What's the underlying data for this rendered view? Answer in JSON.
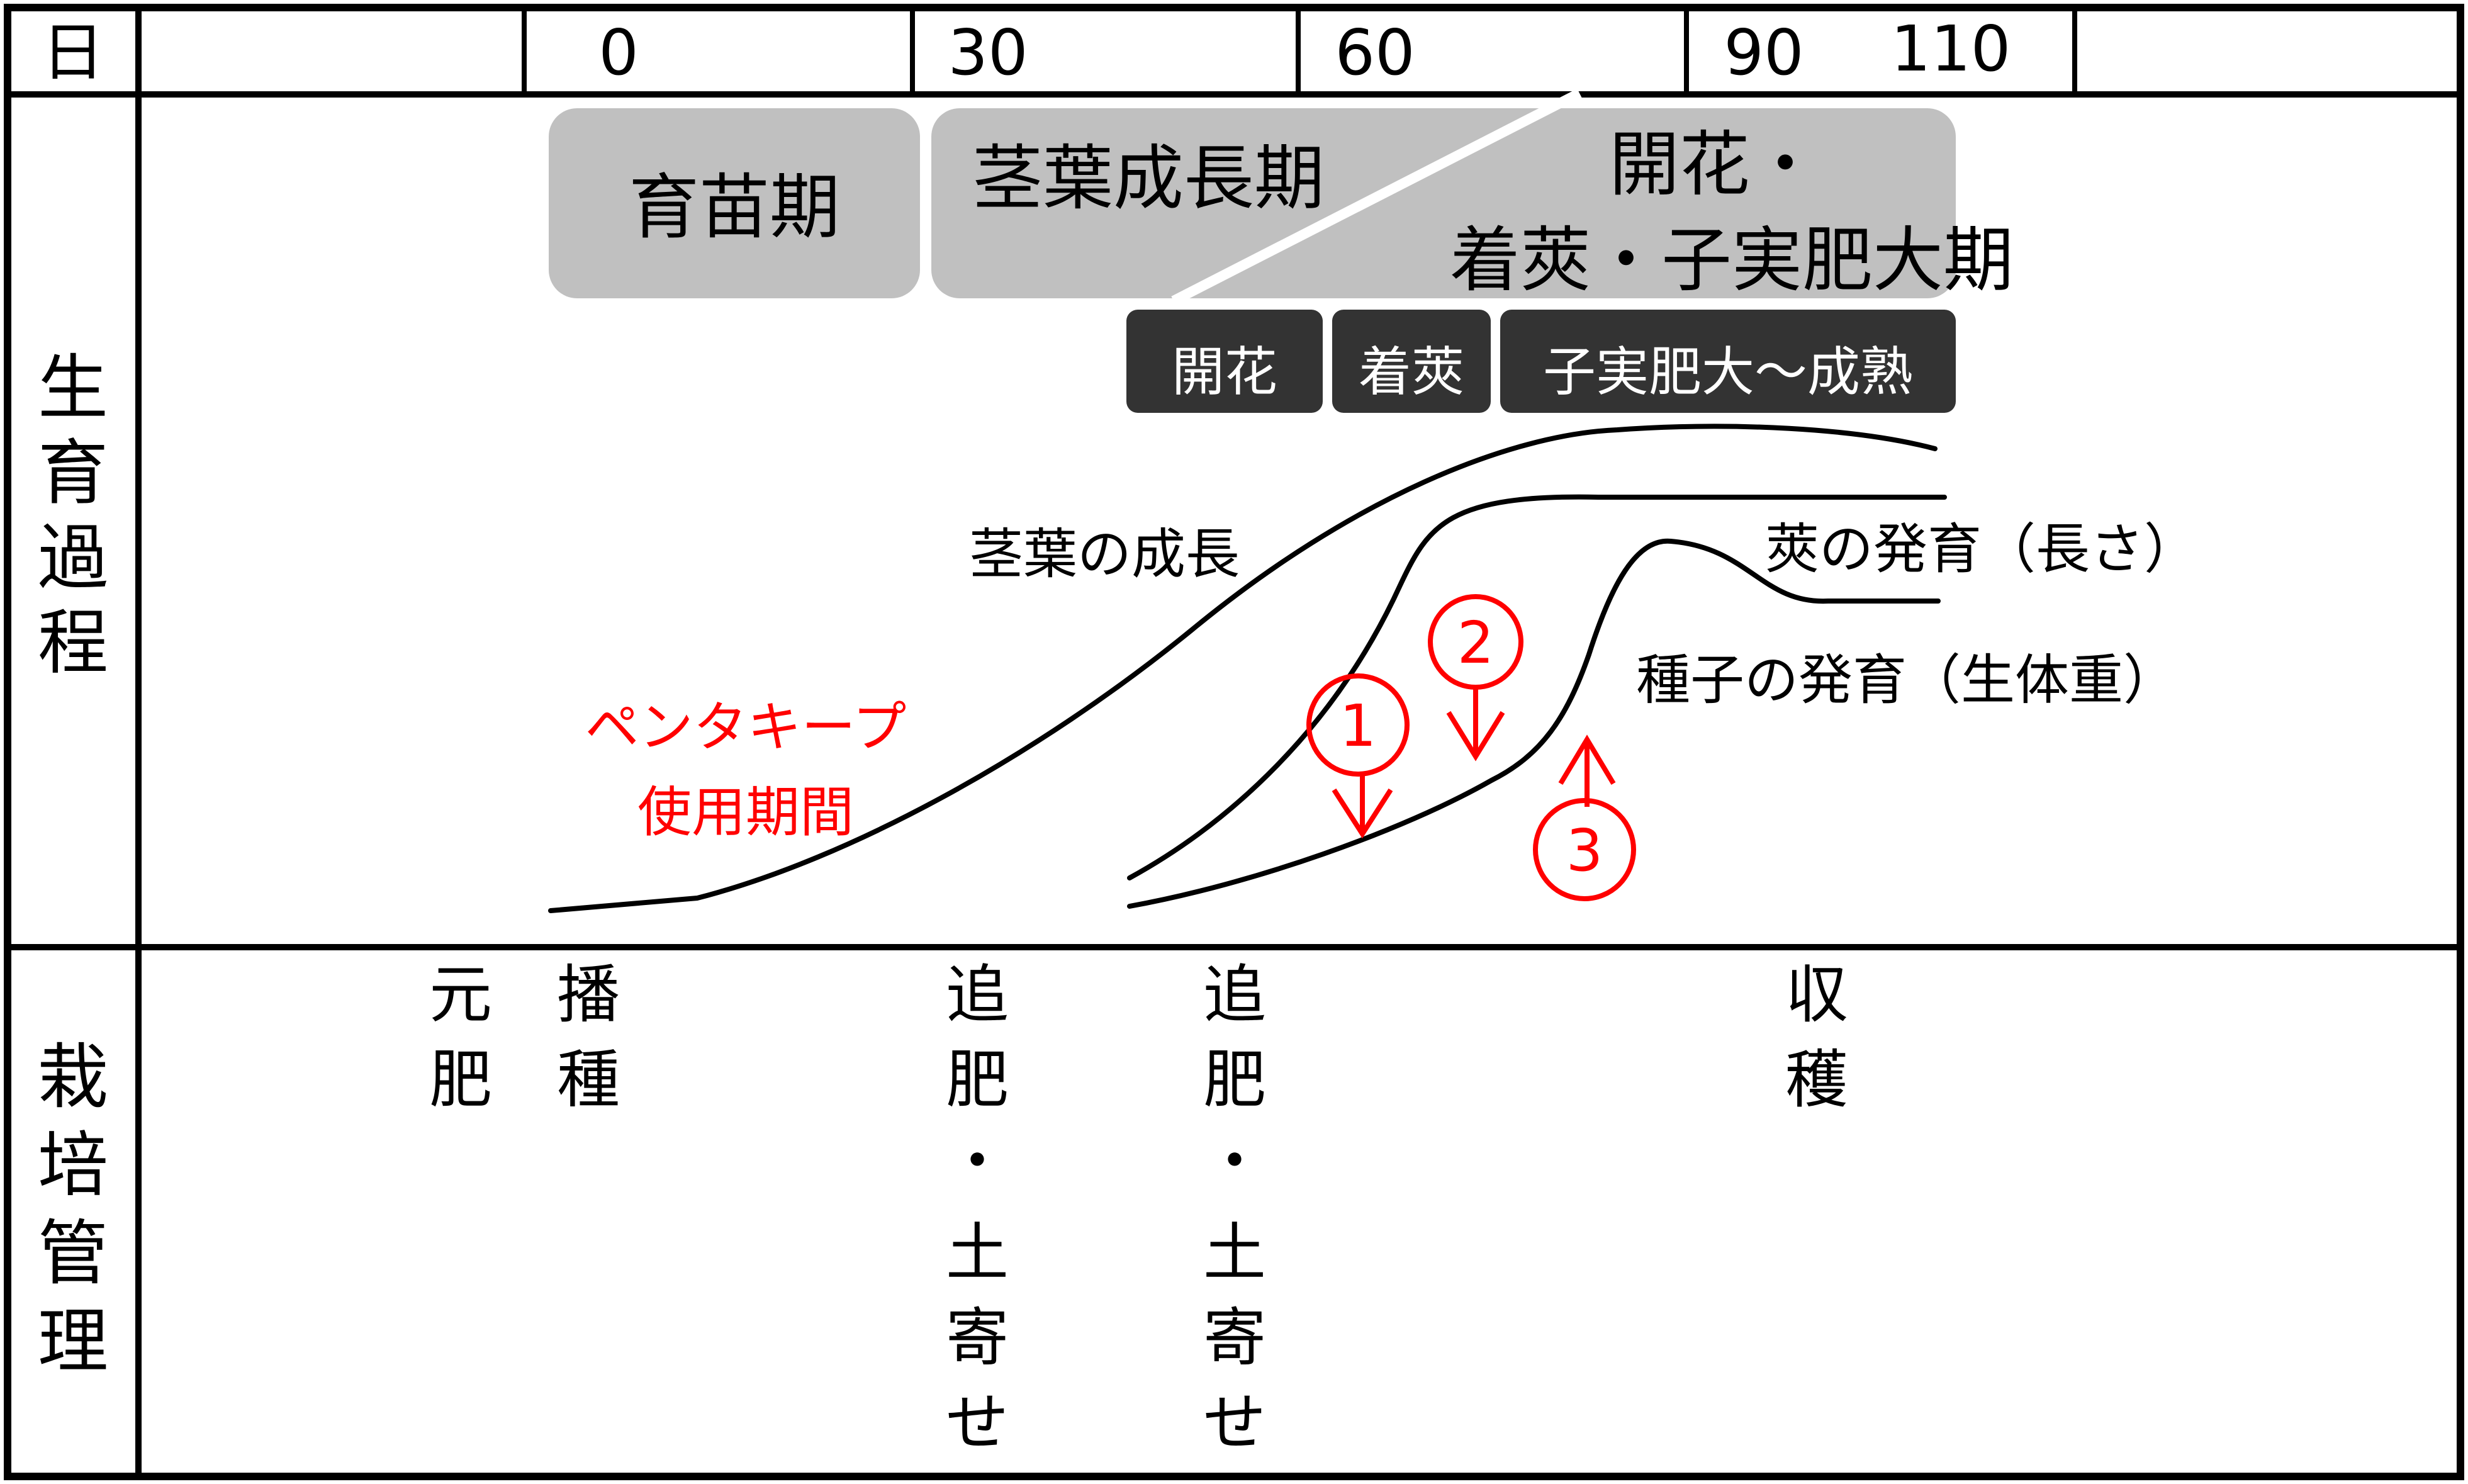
{
  "header": {
    "row_label": "日",
    "day_ticks": [
      "0",
      "30",
      "60",
      "90",
      "110"
    ]
  },
  "growth": {
    "section_label": "生育過程",
    "phases": {
      "seedling": "育苗期",
      "stem_leaf": "茎葉成長期",
      "flowering_line1": "開花・",
      "flowering_line2": "着莢・子実肥大期"
    },
    "sub_phases": [
      "開花",
      "着莢",
      "子実肥大～成熟"
    ],
    "curves": {
      "stem_leaf": "茎葉の成長",
      "pod": "莢の発育（長さ）",
      "seed": "種子の発育（生体重）"
    },
    "penta_label": [
      "ペンタキープ",
      "使用期間"
    ],
    "markers": [
      "1",
      "2",
      "3"
    ],
    "colors": {
      "phase_box": "#c0c0c0",
      "sub_phase_box": "#333333",
      "highlight": "#ff0000"
    }
  },
  "management": {
    "section_label": "栽培管理",
    "events": [
      {
        "id": "base-fertilizer",
        "chars": [
          "元",
          "肥"
        ]
      },
      {
        "id": "sowing",
        "chars": [
          "播",
          "種"
        ]
      },
      {
        "id": "top-dressing-1",
        "chars": [
          "追",
          "肥",
          "・",
          "土",
          "寄",
          "せ"
        ]
      },
      {
        "id": "top-dressing-2",
        "chars": [
          "追",
          "肥",
          "・",
          "土",
          "寄",
          "せ"
        ]
      },
      {
        "id": "harvest",
        "chars": [
          "収",
          "穫"
        ]
      }
    ]
  }
}
